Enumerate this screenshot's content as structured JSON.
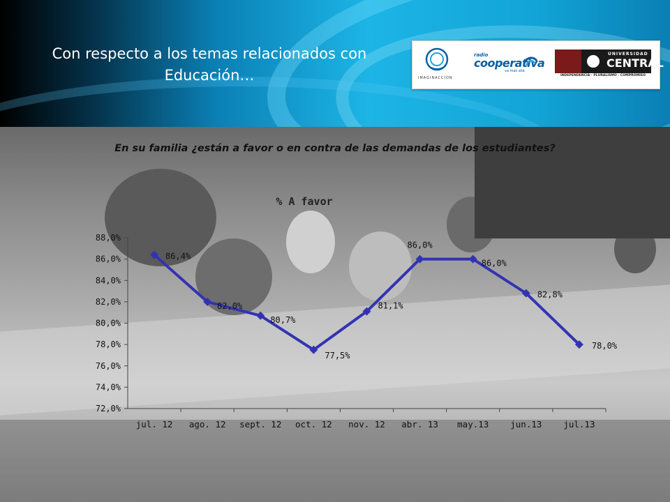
{
  "header": {
    "title": "Con respecto a los temas relacionados con Educación…",
    "logos": {
      "imaginaccion": "IMAGINACCION",
      "cooperativa_radio": "radio",
      "cooperativa_name": "cooperativa",
      "cooperativa_tag": "va más allá",
      "uc_top": "UNIVERSIDAD",
      "uc_name": "CENTRAL",
      "uc_motto": "INDEPENDENCIA - PLURALISMO - COMPROMISO"
    }
  },
  "question": "En su familia ¿están a favor o en contra de las demandas de los estudiantes?",
  "colors": {
    "series": "#3333b2",
    "header_accent": "#1db5e6"
  },
  "chart_data": {
    "type": "line",
    "title": "% A favor",
    "categories": [
      "jul. 12",
      "ago. 12",
      "sept. 12",
      "oct. 12",
      "nov. 12",
      "abr. 13",
      "may.13",
      "jun.13",
      "jul.13"
    ],
    "series": [
      {
        "values": [
          86.4,
          82.0,
          80.7,
          77.5,
          81.1,
          86.0,
          86.0,
          82.8,
          78.0
        ],
        "labels": [
          "86,4%",
          "82,0%",
          "80,7%",
          "77,5%",
          "81,1%",
          "86,0%",
          "86,0%",
          "82,8%",
          "78,0%"
        ]
      }
    ],
    "ylim": [
      72,
      88
    ],
    "yticks": [
      "72,0%",
      "74,0%",
      "76,0%",
      "78,0%",
      "80,0%",
      "82,0%",
      "84,0%",
      "86,0%",
      "88,0%"
    ],
    "grid": false,
    "legend": "none"
  }
}
